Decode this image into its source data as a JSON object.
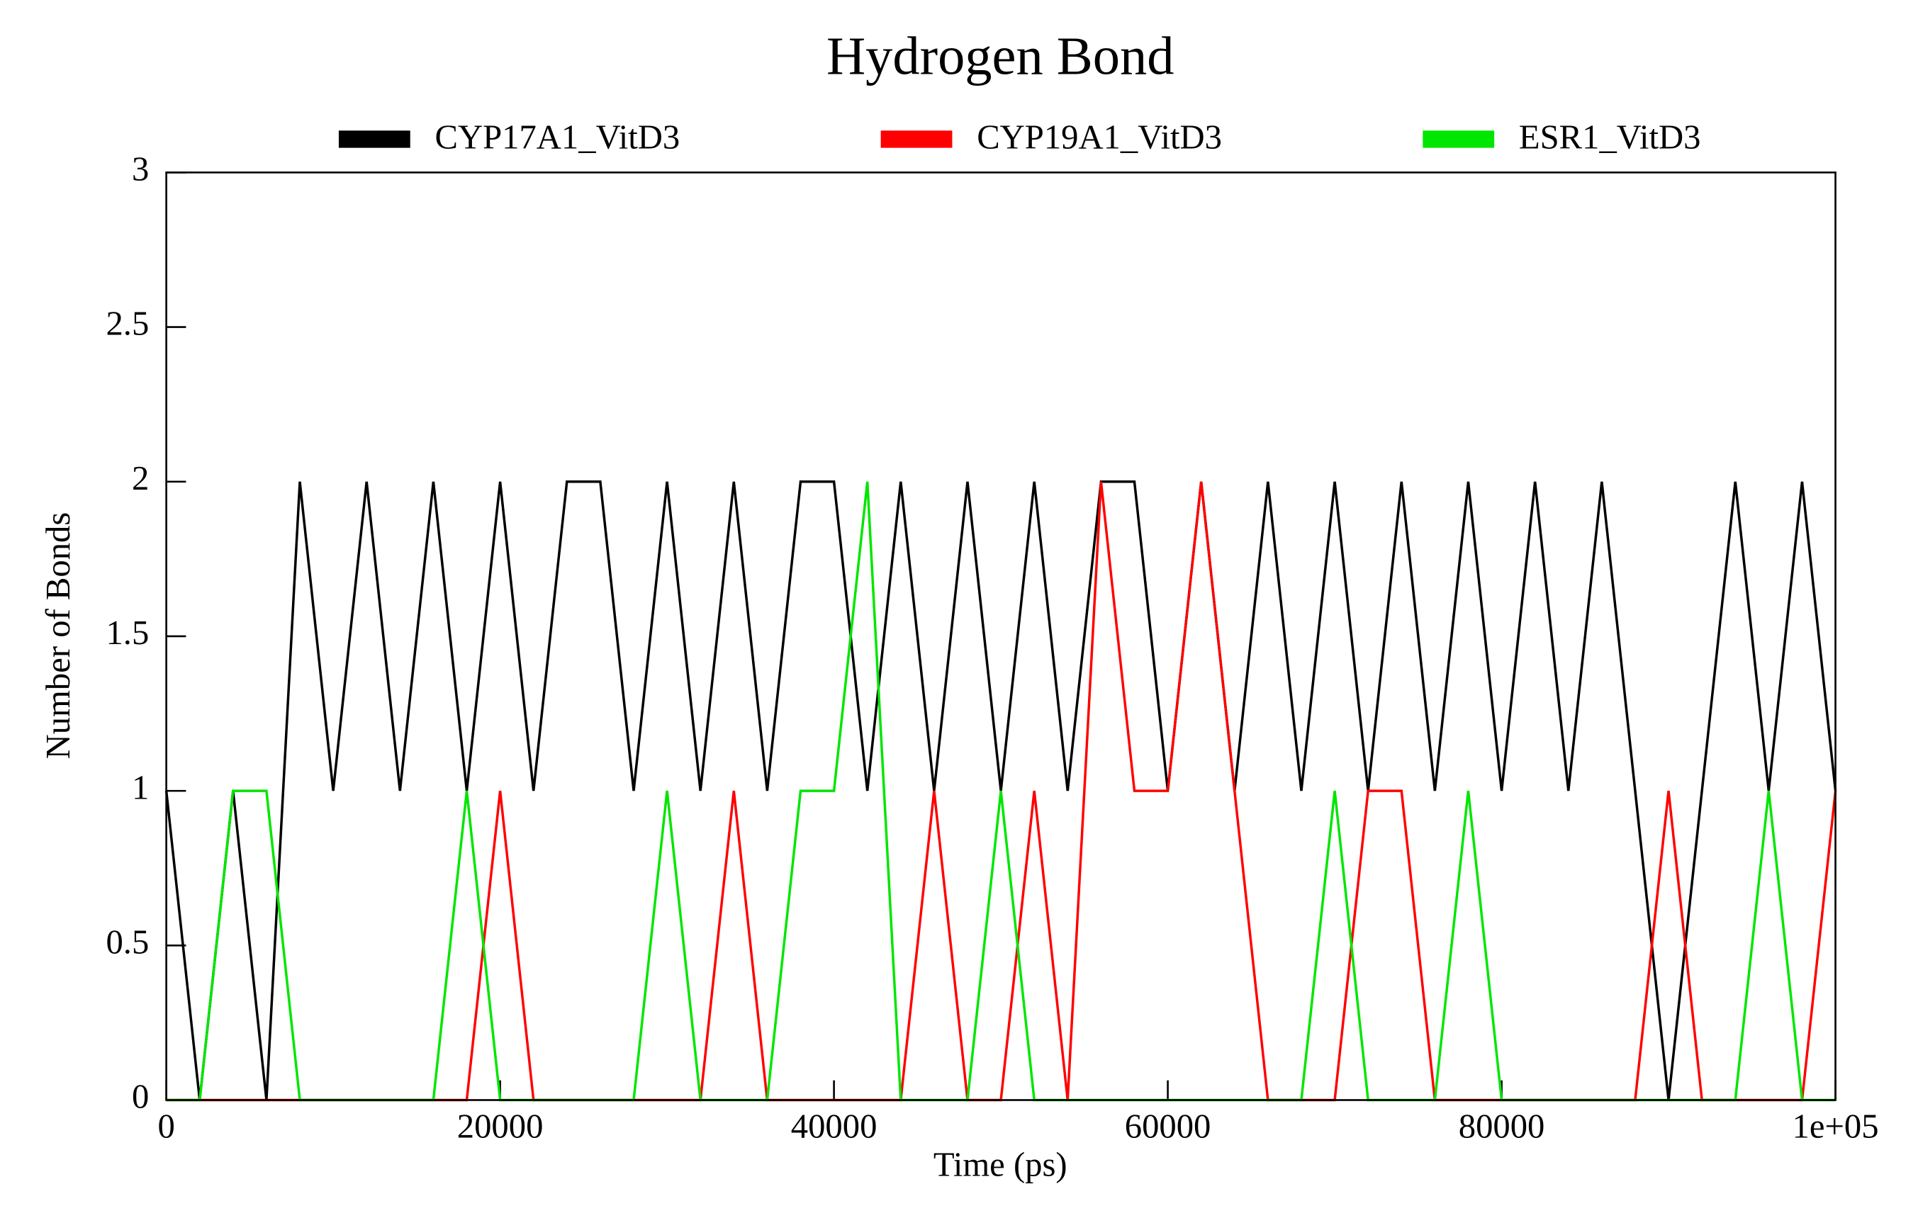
{
  "chart_data": {
    "type": "line",
    "title": "Hydrogen Bond",
    "x_label": "Time (ps)",
    "y_label": "Number of Bonds",
    "x": [
      0,
      2000,
      4000,
      6000,
      8000,
      10000,
      12000,
      14000,
      16000,
      18000,
      20000,
      22000,
      24000,
      26000,
      28000,
      30000,
      32000,
      34000,
      36000,
      38000,
      40000,
      42000,
      44000,
      46000,
      48000,
      50000,
      52000,
      54000,
      56000,
      58000,
      60000,
      62000,
      64000,
      66000,
      68000,
      70000,
      72000,
      74000,
      76000,
      78000,
      80000,
      82000,
      84000,
      86000,
      88000,
      90000,
      92000,
      94000,
      96000,
      98000,
      100000
    ],
    "series": [
      {
        "name": "CYP17A1_VitD3",
        "color": "#000000",
        "values": [
          1,
          0,
          1,
          0,
          2,
          1,
          2,
          1,
          2,
          1,
          2,
          1,
          2,
          2,
          1,
          2,
          1,
          2,
          1,
          2,
          2,
          1,
          2,
          1,
          2,
          1,
          2,
          1,
          2,
          2,
          1,
          2,
          1,
          2,
          1,
          2,
          1,
          2,
          1,
          2,
          1,
          2,
          1,
          2,
          1,
          0,
          1,
          2,
          1,
          2,
          1
        ]
      },
      {
        "name": "CYP19A1_VitD3",
        "color": "#ff0000",
        "values": [
          0,
          0,
          0,
          0,
          0,
          0,
          0,
          0,
          0,
          0,
          1,
          0,
          0,
          0,
          0,
          0,
          0,
          1,
          0,
          0,
          0,
          0,
          0,
          1,
          0,
          0,
          1,
          0,
          2,
          1,
          1,
          2,
          1,
          0,
          0,
          0,
          1,
          1,
          0,
          0,
          0,
          0,
          0,
          0,
          0,
          1,
          0,
          0,
          0,
          0,
          1
        ]
      },
      {
        "name": "ESR1_VitD3",
        "color": "#00e600",
        "values": [
          0,
          0,
          1,
          1,
          0,
          0,
          0,
          0,
          0,
          1,
          0,
          0,
          0,
          0,
          0,
          1,
          0,
          0,
          0,
          1,
          1,
          2,
          0,
          0,
          0,
          1,
          0,
          0,
          0,
          0,
          0,
          0,
          0,
          0,
          0,
          1,
          0,
          0,
          0,
          1,
          0,
          0,
          0,
          0,
          0,
          0,
          0,
          0,
          1,
          0,
          0
        ]
      }
    ],
    "xlim": [
      0,
      100000
    ],
    "ylim": [
      0,
      3
    ],
    "xticks": [
      0,
      20000,
      40000,
      60000,
      80000,
      {
        "value": 100000,
        "label": "1e+05"
      }
    ],
    "yticks": [
      0,
      0.5,
      1,
      1.5,
      2,
      2.5,
      3
    ],
    "legend": "top"
  }
}
